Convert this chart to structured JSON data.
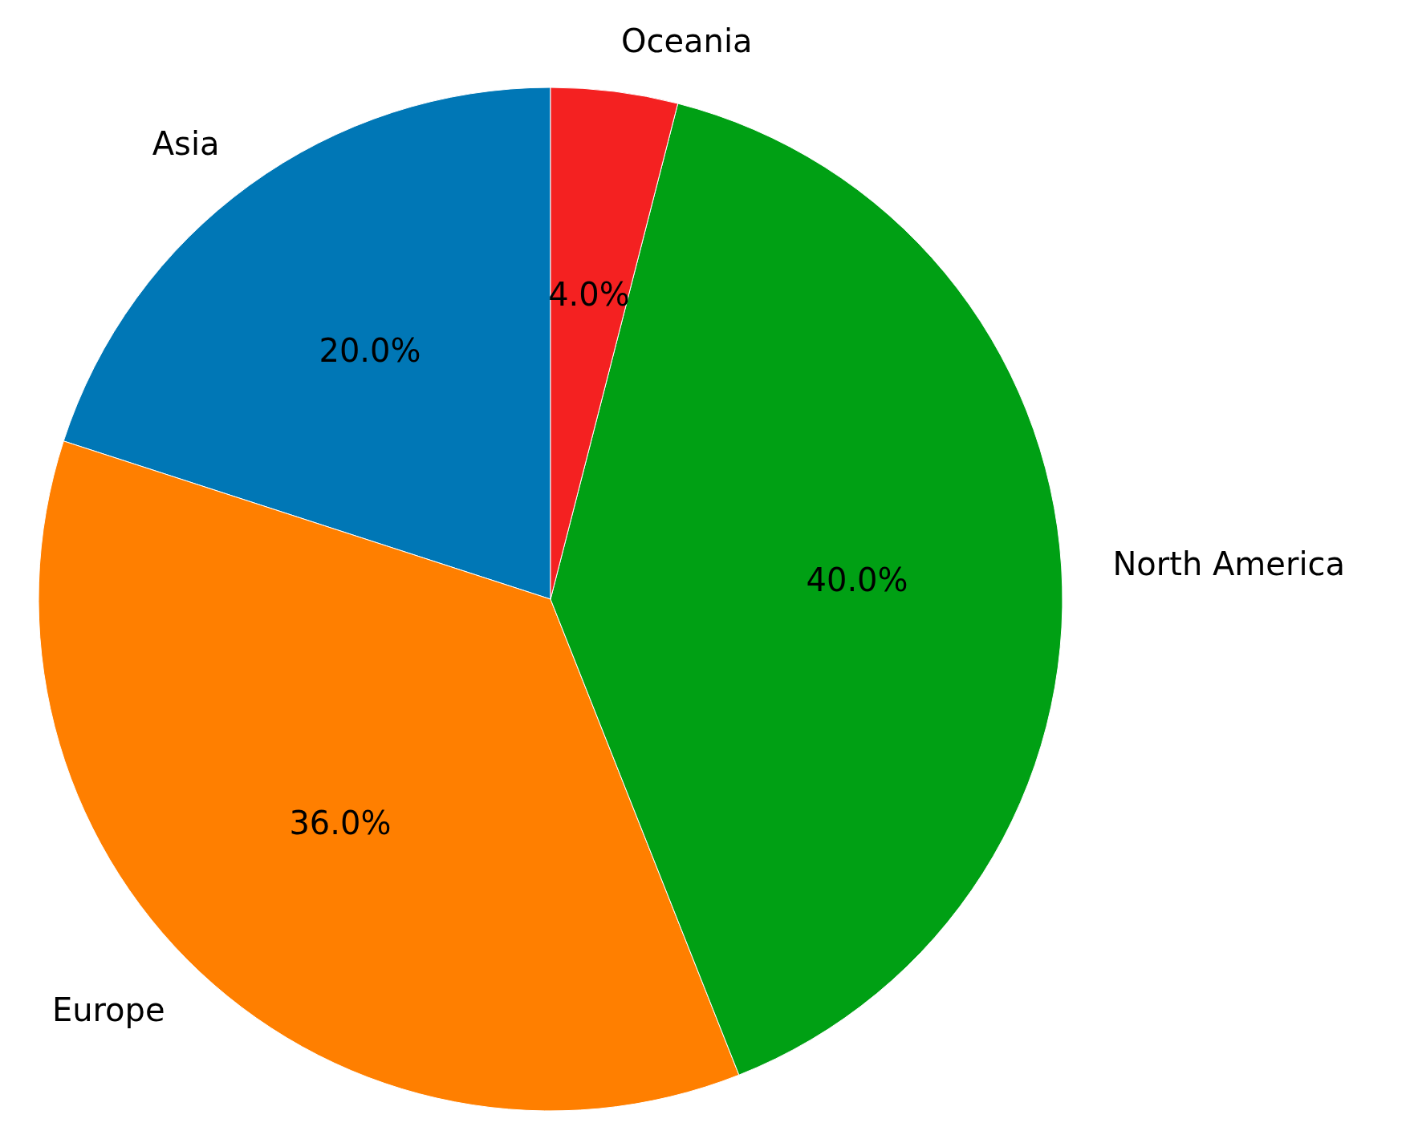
{
  "chart_data": {
    "type": "pie",
    "categories": [
      "Asia",
      "Europe",
      "North America",
      "Oceania"
    ],
    "values": [
      20,
      36,
      40,
      4
    ],
    "colors": [
      "#0077b6",
      "#ff7f00",
      "#00a014",
      "#f42121"
    ],
    "value_labels": [
      "20.0%",
      "36.0%",
      "40.0%",
      "4.0%"
    ]
  }
}
